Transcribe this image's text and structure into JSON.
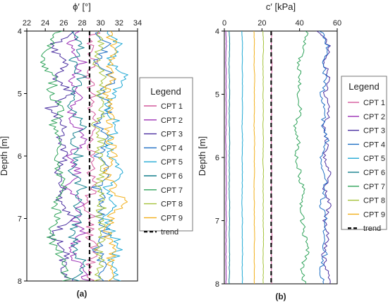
{
  "chart_data": [
    {
      "id": "a",
      "type": "line",
      "panel_label": "(a)",
      "xlabel": "ϕ′ [°]",
      "ylabel": "Depth [m]",
      "xlim": [
        22,
        34
      ],
      "ylim": [
        4,
        8
      ],
      "xticks": [
        22,
        24,
        26,
        28,
        30,
        32,
        34
      ],
      "yticks": [
        4,
        5,
        6,
        7,
        8
      ],
      "x_axis_position": "top",
      "y_inverted": true,
      "grid": false,
      "legend_title": "Legend",
      "legend_position": "right",
      "depth": [
        4.0,
        4.25,
        4.5,
        4.75,
        5.0,
        5.25,
        5.5,
        5.75,
        6.0,
        6.25,
        6.5,
        6.75,
        7.0,
        7.25,
        7.5,
        7.75,
        8.0
      ],
      "series": [
        {
          "name": "CPT 1",
          "color": "#d4589c",
          "values": [
            29.5,
            28.8,
            29.4,
            28.6,
            29.2,
            28.9,
            29.6,
            28.7,
            29.1,
            28.8,
            29.3,
            28.5,
            29.0,
            28.7,
            29.4,
            28.9,
            29.1
          ]
        },
        {
          "name": "CPT 2",
          "color": "#9b2fb5",
          "values": [
            27.6,
            26.6,
            28.0,
            26.8,
            27.9,
            26.7,
            27.3,
            28.3,
            26.6,
            27.6,
            26.3,
            28.2,
            27.1,
            28.0,
            26.8,
            27.6,
            28.6
          ]
        },
        {
          "name": "CPT 3",
          "color": "#4a2fa0",
          "values": [
            27.0,
            24.6,
            26.2,
            25.2,
            26.8,
            24.3,
            26.0,
            25.6,
            26.6,
            25.0,
            26.1,
            25.3,
            26.9,
            24.6,
            26.3,
            25.9,
            26.6
          ]
        },
        {
          "name": "CPT 4",
          "color": "#1e6fc4",
          "values": [
            29.8,
            30.8,
            29.4,
            31.5,
            30.0,
            31.0,
            29.6,
            30.6,
            29.7,
            30.9,
            29.5,
            30.3,
            29.9,
            30.7,
            29.6,
            30.4,
            29.9
          ]
        },
        {
          "name": "CPT 5",
          "color": "#1fa8d4",
          "values": [
            30.6,
            32.2,
            30.8,
            33.0,
            31.4,
            30.6,
            32.0,
            30.9,
            31.2,
            32.3,
            30.8,
            31.6,
            30.7,
            31.4,
            32.0,
            31.0,
            31.7
          ]
        },
        {
          "name": "CPT 6",
          "color": "#127f8c",
          "values": [
            26.6,
            27.8,
            26.9,
            28.0,
            27.2,
            26.8,
            28.2,
            27.0,
            27.6,
            26.9,
            28.0,
            27.3,
            27.8,
            26.9,
            27.4,
            28.1,
            27.2
          ]
        },
        {
          "name": "CPT 7",
          "color": "#2fa35a",
          "values": [
            25.6,
            24.4,
            23.8,
            25.0,
            24.6,
            25.8,
            24.9,
            26.0,
            24.7,
            25.4,
            25.9,
            24.8,
            25.6,
            24.5,
            25.3,
            25.9,
            26.4
          ]
        },
        {
          "name": "CPT 8",
          "color": "#a4c23a",
          "values": [
            29.6,
            30.2,
            29.3,
            30.6,
            29.9,
            30.4,
            29.5,
            30.1,
            29.8,
            30.5,
            29.6,
            30.2,
            29.9,
            30.4,
            29.7,
            30.0,
            29.8
          ]
        },
        {
          "name": "CPT 9",
          "color": "#f2b01c",
          "values": [
            30.8,
            31.6,
            30.9,
            31.2,
            30.4,
            31.4,
            30.7,
            31.0,
            31.5,
            30.6,
            31.3,
            32.6,
            31.0,
            30.8,
            31.2,
            30.9,
            31.3
          ]
        },
        {
          "name": "trend",
          "color": "#111111",
          "dashed": true,
          "values": [
            28.8,
            28.8,
            28.8,
            28.8,
            28.8,
            28.8,
            28.8,
            28.8,
            28.8,
            28.8,
            28.8,
            28.8,
            28.8,
            28.8,
            28.8,
            28.8,
            28.8
          ]
        }
      ]
    },
    {
      "id": "b",
      "type": "line",
      "panel_label": "(b)",
      "xlabel": "c′ [kPa]",
      "ylabel": "Depth [m]",
      "xlim": [
        0,
        60
      ],
      "ylim": [
        4,
        8
      ],
      "xticks": [
        0,
        20,
        40,
        60
      ],
      "yticks": [
        4,
        5,
        6,
        7,
        8
      ],
      "x_axis_position": "top",
      "y_inverted": true,
      "grid": false,
      "legend_title": "Legend",
      "legend_position": "right",
      "depth": [
        4.0,
        4.25,
        4.5,
        4.75,
        5.0,
        5.25,
        5.5,
        5.75,
        6.0,
        6.25,
        6.5,
        6.75,
        7.0,
        7.25,
        7.5,
        7.75,
        8.0
      ],
      "series": [
        {
          "name": "CPT 1",
          "color": "#d4589c",
          "values": [
            25.2,
            25.0,
            25.3,
            25.1,
            25.0,
            25.2,
            25.1,
            25.0,
            25.2,
            25.1,
            25.0,
            25.2,
            25.1,
            25.3,
            25.0,
            25.1,
            25.2
          ]
        },
        {
          "name": "CPT 2",
          "color": "#9b2fb5",
          "values": [
            0.9,
            1.0,
            0.8,
            1.0,
            0.9,
            1.0,
            0.9,
            0.8,
            1.0,
            0.9,
            1.0,
            0.9,
            1.0,
            0.9,
            0.8,
            1.0,
            0.9
          ]
        },
        {
          "name": "CPT 3",
          "color": "#4a2fa0",
          "values": [
            50.2,
            56.0,
            53.5,
            55.4,
            53.0,
            56.5,
            52.8,
            54.6,
            53.4,
            55.7,
            53.0,
            56.2,
            53.2,
            55.0,
            52.6,
            54.4,
            55.8
          ]
        },
        {
          "name": "CPT 4",
          "color": "#1e6fc4",
          "values": [
            51.5,
            55.5,
            52.0,
            54.2,
            51.6,
            53.6,
            52.2,
            54.8,
            51.8,
            53.0,
            54.0,
            51.5,
            53.8,
            52.0,
            54.0,
            51.4,
            52.4
          ]
        },
        {
          "name": "CPT 5",
          "color": "#1fa8d4",
          "values": [
            9.4,
            9.6,
            9.5,
            9.7,
            9.5,
            9.6,
            9.4,
            9.7,
            9.5,
            9.6,
            9.5,
            9.4,
            9.6,
            9.5,
            9.7,
            9.5,
            9.6
          ]
        },
        {
          "name": "CPT 6",
          "color": "#127f8c",
          "values": [
            2.6,
            2.8,
            2.6,
            2.7,
            2.8,
            2.6,
            2.7,
            2.8,
            2.6,
            2.7,
            2.6,
            2.8,
            2.7,
            2.6,
            2.8,
            2.7,
            2.6
          ]
        },
        {
          "name": "CPT 7",
          "color": "#2fa35a",
          "values": [
            44.0,
            42.0,
            39.2,
            40.6,
            38.8,
            40.8,
            37.6,
            39.6,
            38.2,
            40.0,
            41.6,
            40.4,
            41.5,
            42.8,
            44.2,
            41.0,
            42.6
          ]
        },
        {
          "name": "CPT 8",
          "color": "#a4c23a",
          "values": [
            20.6,
            20.8,
            20.5,
            20.7,
            20.6,
            20.8,
            20.6,
            20.7,
            20.5,
            20.8,
            20.6,
            20.7,
            20.6,
            20.8,
            20.6,
            20.7,
            20.6
          ]
        },
        {
          "name": "CPT 9",
          "color": "#f2b01c",
          "values": [
            15.8,
            16.0,
            15.8,
            16.1,
            15.9,
            16.0,
            15.8,
            16.1,
            15.9,
            16.0,
            15.8,
            16.0,
            15.9,
            16.1,
            15.9,
            16.0,
            15.9
          ]
        },
        {
          "name": "trend",
          "color": "#111111",
          "dashed": true,
          "values": [
            24.9,
            24.9,
            24.9,
            24.9,
            24.9,
            24.9,
            24.9,
            24.9,
            24.9,
            24.9,
            24.9,
            24.9,
            24.9,
            24.9,
            24.9,
            24.9,
            24.9
          ]
        }
      ]
    }
  ]
}
